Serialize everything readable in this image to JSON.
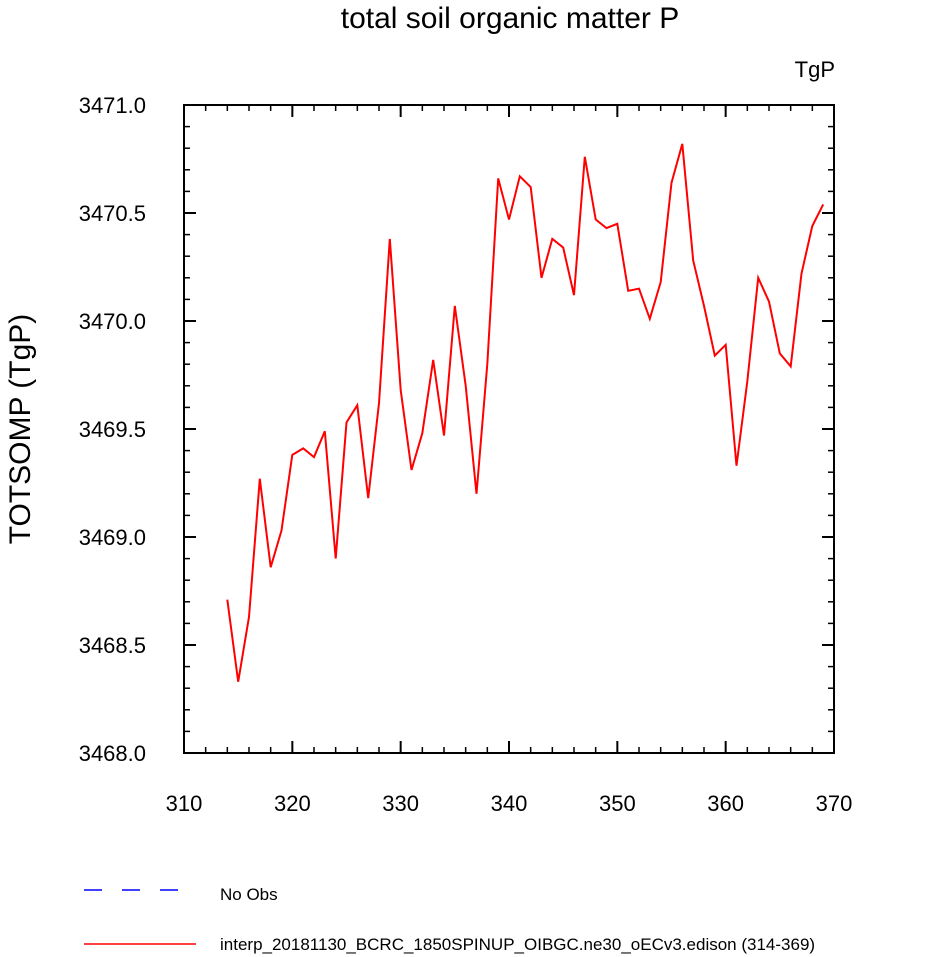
{
  "chart_data": {
    "type": "line",
    "title": "total soil organic matter P",
    "units_label": "TgP",
    "xlabel": "",
    "ylabel": "TOTSOMP  (TgP)",
    "xlim": [
      310,
      370
    ],
    "ylim": [
      3468.0,
      3471.0
    ],
    "x_ticks": [
      310,
      320,
      330,
      340,
      350,
      360,
      370
    ],
    "x_tick_labels": [
      "310",
      "320",
      "330",
      "340",
      "350",
      "360",
      "370"
    ],
    "y_ticks": [
      3468.0,
      3468.5,
      3469.0,
      3469.5,
      3470.0,
      3470.5,
      3471.0
    ],
    "y_tick_labels": [
      "3468.0",
      "3468.5",
      "3469.0",
      "3469.5",
      "3470.0",
      "3470.5",
      "3471.0"
    ],
    "series": [
      {
        "name": "interp_20181130_BCRC_1850SPINUP_OIBGC.ne30_oECv3.edison (314-369)",
        "color": "#ff0000",
        "style": "solid",
        "x": [
          314,
          315,
          316,
          317,
          318,
          319,
          320,
          321,
          322,
          323,
          324,
          325,
          326,
          327,
          328,
          329,
          330,
          331,
          332,
          333,
          334,
          335,
          336,
          337,
          338,
          339,
          340,
          341,
          342,
          343,
          344,
          345,
          346,
          347,
          348,
          349,
          350,
          351,
          352,
          353,
          354,
          355,
          356,
          357,
          358,
          359,
          360,
          361,
          362,
          363,
          364,
          365,
          366,
          367,
          368,
          369
        ],
        "values": [
          3468.71,
          3468.33,
          3468.63,
          3469.27,
          3468.86,
          3469.03,
          3469.38,
          3469.41,
          3469.37,
          3469.49,
          3468.9,
          3469.53,
          3469.61,
          3469.18,
          3469.62,
          3470.38,
          3469.68,
          3469.31,
          3469.48,
          3469.82,
          3469.47,
          3470.07,
          3469.7,
          3469.2,
          3469.8,
          3470.66,
          3470.47,
          3470.67,
          3470.62,
          3470.2,
          3470.38,
          3470.34,
          3470.12,
          3470.76,
          3470.47,
          3470.43,
          3470.45,
          3470.14,
          3470.15,
          3470.01,
          3470.18,
          3470.64,
          3470.82,
          3470.28,
          3470.07,
          3469.84,
          3469.89,
          3469.33,
          3469.72,
          3470.2,
          3470.09,
          3469.85,
          3469.79,
          3470.22,
          3470.44,
          3470.54
        ]
      }
    ],
    "legend": [
      {
        "label": "No Obs",
        "color": "#0000ff",
        "style": "dashed"
      },
      {
        "label": "interp_20181130_BCRC_1850SPINUP_OIBGC.ne30_oECv3.edison (314-369)",
        "color": "#ff0000",
        "style": "solid"
      }
    ]
  }
}
